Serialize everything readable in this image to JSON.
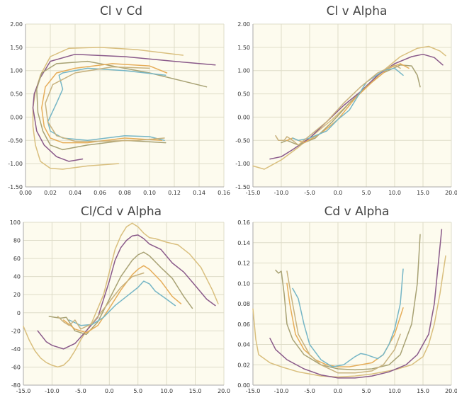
{
  "colors": {
    "plot_bg": "#fdfbee",
    "grid": "#dedcc8",
    "axis": "#aaaaaa",
    "series": [
      "#d9bf7e",
      "#8a5a8a",
      "#a8a274",
      "#e6ad59",
      "#76b6c6",
      "#c8b27e"
    ]
  },
  "chart_data": [
    {
      "type": "line",
      "title": "Cl v Cd",
      "xlabel": "",
      "ylabel": "",
      "xlim": [
        0,
        0.16
      ],
      "ylim": [
        -1.5,
        2.0
      ],
      "xticks": [
        "0.00",
        "0.02",
        "0.04",
        "0.06",
        "0.08",
        "0.10",
        "0.12",
        "0.14",
        "0.16"
      ],
      "yticks": [
        "-1.50",
        "-1.00",
        "-0.50",
        "0.00",
        "0.50",
        "1.00",
        "1.50",
        "2.00"
      ],
      "grid": true,
      "series": [
        {
          "x": [
            0.075,
            0.05,
            0.03,
            0.02,
            0.012,
            0.008,
            0.006,
            0.006,
            0.008,
            0.012,
            0.02,
            0.035,
            0.06,
            0.09,
            0.127
          ],
          "y": [
            -1.0,
            -1.05,
            -1.12,
            -1.1,
            -0.95,
            -0.6,
            -0.2,
            0.2,
            0.55,
            0.9,
            1.3,
            1.48,
            1.5,
            1.45,
            1.33
          ]
        },
        {
          "x": [
            0.046,
            0.035,
            0.025,
            0.015,
            0.009,
            0.006,
            0.007,
            0.012,
            0.02,
            0.04,
            0.08,
            0.12,
            0.153
          ],
          "y": [
            -0.9,
            -0.95,
            -0.85,
            -0.6,
            -0.3,
            0.2,
            0.5,
            0.85,
            1.2,
            1.35,
            1.3,
            1.2,
            1.12
          ]
        },
        {
          "x": [
            0.113,
            0.08,
            0.05,
            0.03,
            0.02,
            0.014,
            0.01,
            0.009,
            0.013,
            0.025,
            0.05,
            0.1,
            0.146
          ],
          "y": [
            -0.55,
            -0.5,
            -0.6,
            -0.7,
            -0.6,
            -0.3,
            0.1,
            0.6,
            0.95,
            1.15,
            1.2,
            0.95,
            0.65
          ]
        },
        {
          "x": [
            0.11,
            0.08,
            0.05,
            0.03,
            0.02,
            0.015,
            0.013,
            0.016,
            0.025,
            0.04,
            0.07,
            0.1,
            0.114
          ],
          "y": [
            -0.5,
            -0.45,
            -0.55,
            -0.55,
            -0.45,
            -0.2,
            0.2,
            0.65,
            0.95,
            1.05,
            1.15,
            1.1,
            0.95
          ]
        },
        {
          "x": [
            0.112,
            0.1,
            0.08,
            0.05,
            0.03,
            0.02,
            0.018,
            0.025,
            0.03,
            0.027,
            0.03,
            0.05,
            0.08,
            0.113
          ],
          "y": [
            -0.5,
            -0.42,
            -0.4,
            -0.5,
            -0.45,
            -0.3,
            -0.1,
            0.3,
            0.6,
            0.9,
            0.95,
            1.05,
            1.0,
            0.9
          ]
        },
        {
          "x": [
            0.112,
            0.09,
            0.06,
            0.04,
            0.025,
            0.018,
            0.016,
            0.022,
            0.04,
            0.07,
            0.1
          ],
          "y": [
            -0.45,
            -0.5,
            -0.52,
            -0.52,
            -0.4,
            -0.1,
            0.3,
            0.7,
            0.95,
            1.08,
            1.05
          ]
        }
      ]
    },
    {
      "type": "line",
      "title": "Cl v Alpha",
      "xlabel": "",
      "ylabel": "",
      "xlim": [
        -15,
        20
      ],
      "ylim": [
        -1.5,
        2.0
      ],
      "xticks": [
        "-15.0",
        "-10.0",
        "-5.0",
        "0.0",
        "5.0",
        "10.0",
        "15.0",
        "20.0"
      ],
      "yticks": [
        "-1.50",
        "-1.00",
        "-0.50",
        "0.00",
        "0.50",
        "1.00",
        "1.50",
        "2.00"
      ],
      "grid": true,
      "series": [
        {
          "x": [
            -15,
            -13,
            -10,
            -7,
            -4,
            -1,
            2,
            5,
            8,
            11,
            14,
            16,
            18,
            19
          ],
          "y": [
            -1.05,
            -1.12,
            -0.92,
            -0.65,
            -0.35,
            -0.05,
            0.3,
            0.65,
            1.0,
            1.3,
            1.48,
            1.52,
            1.42,
            1.32
          ]
        },
        {
          "x": [
            -12,
            -10,
            -8,
            -5,
            -2,
            1,
            4,
            7,
            10,
            13,
            15,
            17,
            18.5
          ],
          "y": [
            -0.9,
            -0.85,
            -0.7,
            -0.45,
            -0.1,
            0.25,
            0.55,
            0.9,
            1.15,
            1.3,
            1.35,
            1.28,
            1.12
          ]
        },
        {
          "x": [
            -10,
            -9,
            -7,
            -4,
            -1,
            2,
            5,
            8,
            11,
            13,
            14,
            14.5
          ],
          "y": [
            -0.55,
            -0.5,
            -0.6,
            -0.45,
            -0.1,
            0.3,
            0.65,
            0.95,
            1.12,
            1.1,
            0.9,
            0.65
          ]
        },
        {
          "x": [
            -9,
            -8,
            -6,
            -3,
            0,
            3,
            6,
            9,
            11,
            12.5
          ],
          "y": [
            -0.5,
            -0.45,
            -0.55,
            -0.35,
            -0.05,
            0.4,
            0.75,
            1.05,
            1.15,
            1.05
          ]
        },
        {
          "x": [
            -8,
            -7,
            -5,
            -2,
            0,
            2,
            5,
            8,
            10,
            11.5
          ],
          "y": [
            -0.45,
            -0.5,
            -0.45,
            -0.3,
            -0.05,
            0.15,
            0.75,
            1.0,
            1.05,
            0.9
          ]
        },
        {
          "x": [
            -11,
            -10.5,
            -9.5,
            -9,
            -8,
            -7,
            -5,
            -2,
            1,
            4,
            7,
            10,
            11
          ],
          "y": [
            -0.4,
            -0.5,
            -0.5,
            -0.42,
            -0.5,
            -0.6,
            -0.4,
            -0.1,
            0.3,
            0.65,
            0.95,
            1.12,
            1.05
          ]
        }
      ]
    },
    {
      "type": "line",
      "title": "Cl/Cd v Alpha",
      "xlabel": "",
      "ylabel": "",
      "xlim": [
        -15,
        20
      ],
      "ylim": [
        -80,
        100
      ],
      "xticks": [
        "-15.0",
        "-10.0",
        "-5.0",
        "0.0",
        "5.0",
        "10.0",
        "15.0",
        "20.0"
      ],
      "yticks": [
        "-80",
        "-60",
        "-40",
        "-20",
        "0",
        "20",
        "40",
        "60",
        "80",
        "100"
      ],
      "grid": true,
      "series": [
        {
          "x": [
            -15,
            -14,
            -13,
            -12,
            -11,
            -10,
            -9,
            -8,
            -7,
            -6,
            -5,
            -3,
            -1,
            0,
            1,
            2,
            3,
            4,
            5,
            6,
            7,
            8,
            10,
            12,
            14,
            16,
            18,
            19
          ],
          "y": [
            -15,
            -30,
            -42,
            -50,
            -55,
            -58,
            -60,
            -58,
            -52,
            -42,
            -30,
            -10,
            20,
            45,
            70,
            85,
            95,
            99,
            95,
            88,
            83,
            82,
            78,
            75,
            65,
            50,
            25,
            10
          ]
        },
        {
          "x": [
            -12.5,
            -11,
            -10,
            -9,
            -8,
            -6,
            -4,
            -2,
            0,
            1,
            2,
            3,
            4,
            5,
            6,
            7,
            9,
            11,
            13,
            15,
            17,
            18.5
          ],
          "y": [
            -20,
            -32,
            -36,
            -38,
            -40,
            -34,
            -20,
            -5,
            35,
            58,
            72,
            80,
            85,
            86,
            82,
            76,
            70,
            55,
            45,
            30,
            15,
            8
          ]
        },
        {
          "x": [
            -10.5,
            -9.5,
            -8.5,
            -7.5,
            -6,
            -4,
            -2,
            0,
            2,
            4,
            5,
            6,
            7,
            9,
            11,
            13,
            14.5
          ],
          "y": [
            -4,
            -5,
            -6,
            -5,
            -20,
            -24,
            -10,
            15,
            40,
            58,
            64,
            67,
            63,
            50,
            38,
            18,
            5
          ]
        },
        {
          "x": [
            -8,
            -6,
            -4,
            -2,
            0,
            2,
            4,
            5,
            6,
            7,
            9,
            11,
            12.5
          ],
          "y": [
            -8,
            -18,
            -22,
            -14,
            5,
            25,
            42,
            48,
            52,
            48,
            35,
            18,
            10
          ]
        },
        {
          "x": [
            -7,
            -5,
            -3,
            -1,
            1,
            3,
            5,
            6,
            7,
            8,
            10,
            11.5
          ],
          "y": [
            -8,
            -14,
            -13,
            -5,
            8,
            18,
            28,
            35,
            32,
            24,
            15,
            8
          ]
        },
        {
          "x": [
            -9,
            -8,
            -7,
            -6,
            -5,
            -3,
            0,
            2,
            4,
            6
          ],
          "y": [
            -4,
            -10,
            -14,
            -8,
            -18,
            -12,
            12,
            28,
            40,
            44
          ]
        }
      ]
    },
    {
      "type": "line",
      "title": "Cd v Alpha",
      "xlabel": "",
      "ylabel": "",
      "xlim": [
        -15,
        20
      ],
      "ylim": [
        0,
        0.16
      ],
      "xticks": [
        "-15.0",
        "-10.0",
        "-5.0",
        "0.0",
        "5.0",
        "10.0",
        "15.0",
        "20.0"
      ],
      "yticks": [
        "0.00",
        "0.02",
        "0.04",
        "0.06",
        "0.08",
        "0.10",
        "0.12",
        "0.14",
        "0.16"
      ],
      "grid": true,
      "series": [
        {
          "x": [
            -15,
            -14.5,
            -14,
            -12,
            -10,
            -7,
            -3,
            0,
            3,
            6,
            10,
            13,
            15,
            16,
            17,
            18,
            19
          ],
          "y": [
            0.075,
            0.045,
            0.03,
            0.022,
            0.018,
            0.013,
            0.009,
            0.008,
            0.009,
            0.011,
            0.015,
            0.02,
            0.028,
            0.04,
            0.06,
            0.09,
            0.127
          ]
        },
        {
          "x": [
            -12,
            -11,
            -9,
            -6,
            -3,
            0,
            3,
            6,
            9,
            12,
            14,
            16,
            17,
            18.3
          ],
          "y": [
            0.046,
            0.035,
            0.025,
            0.016,
            0.01,
            0.007,
            0.007,
            0.009,
            0.013,
            0.02,
            0.03,
            0.05,
            0.08,
            0.153
          ]
        },
        {
          "x": [
            -11,
            -10.5,
            -10,
            -9.5,
            -9,
            -8,
            -6,
            -3,
            0,
            3,
            6,
            9,
            11,
            13,
            14,
            14.5
          ],
          "y": [
            0.113,
            0.11,
            0.112,
            0.09,
            0.06,
            0.045,
            0.03,
            0.02,
            0.016,
            0.015,
            0.016,
            0.02,
            0.03,
            0.06,
            0.1,
            0.148
          ]
        },
        {
          "x": [
            -9,
            -8.5,
            -7.5,
            -6,
            -4,
            -2,
            0,
            2,
            4,
            6,
            8,
            10,
            11.5
          ],
          "y": [
            0.1,
            0.08,
            0.05,
            0.035,
            0.025,
            0.02,
            0.018,
            0.018,
            0.02,
            0.022,
            0.03,
            0.05,
            0.076
          ]
        },
        {
          "x": [
            -8,
            -7,
            -6,
            -5,
            -3,
            -1,
            1,
            2,
            3,
            4,
            5,
            6,
            7,
            8,
            9,
            10,
            11,
            11.5
          ],
          "y": [
            0.095,
            0.085,
            0.06,
            0.04,
            0.025,
            0.018,
            0.02,
            0.024,
            0.028,
            0.031,
            0.03,
            0.028,
            0.026,
            0.03,
            0.04,
            0.055,
            0.08,
            0.114
          ]
        },
        {
          "x": [
            -9,
            -8,
            -7,
            -5,
            -3,
            0,
            3,
            6,
            8,
            10,
            11
          ],
          "y": [
            0.112,
            0.08,
            0.05,
            0.03,
            0.02,
            0.012,
            0.012,
            0.014,
            0.02,
            0.035,
            0.05
          ]
        }
      ]
    }
  ]
}
